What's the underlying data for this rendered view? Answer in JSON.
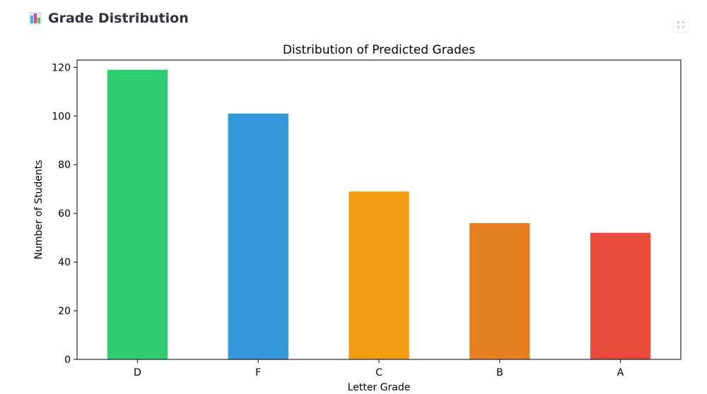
{
  "header": {
    "title": "Grade Distribution",
    "icon": "bar-chart-icon"
  },
  "toolbar": {
    "fullscreen_icon": "fullscreen-icon"
  },
  "chart_data": {
    "type": "bar",
    "title": "Distribution of Predicted Grades",
    "xlabel": "Letter Grade",
    "ylabel": "Number of Students",
    "categories": [
      "D",
      "F",
      "C",
      "B",
      "A"
    ],
    "values": [
      119,
      101,
      69,
      56,
      52
    ],
    "colors": [
      "#2ecc71",
      "#3498db",
      "#f39c12",
      "#e67e22",
      "#e74c3c"
    ],
    "ylim": [
      0,
      123
    ],
    "yticks": [
      0,
      20,
      40,
      60,
      80,
      100,
      120
    ],
    "grid": false,
    "legend": "none"
  }
}
